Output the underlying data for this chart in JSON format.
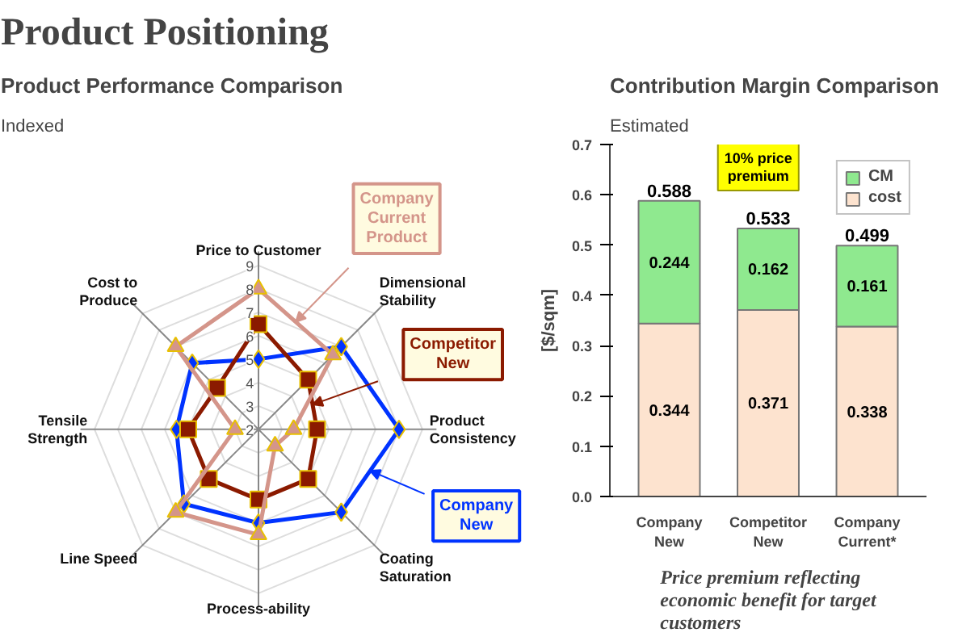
{
  "chart_data": [
    {
      "type": "radar",
      "title": "Product Performance Comparison",
      "subtitle": "Indexed",
      "annotations": [
        "Product Positioning"
      ],
      "categories": [
        "Price to Customer",
        "Dimensional Stability",
        "Product Consistency",
        "Coating Saturation",
        "Process-ability",
        "Line Speed",
        "Tensile Strength",
        "Cost to Produce"
      ],
      "ylim": [
        2,
        9
      ],
      "yticks": [
        2,
        3,
        4,
        5,
        6,
        7,
        8,
        9
      ],
      "grid": true,
      "legend": false,
      "series": [
        {
          "name": "Company New",
          "color": "#0033ff",
          "marker": "diamond",
          "values": [
            5,
            7,
            8,
            7,
            6,
            6.5,
            5.5,
            6
          ]
        },
        {
          "name": "Competitor New",
          "color": "#8b1a00",
          "marker": "square",
          "values": [
            6.5,
            5,
            4.5,
            5,
            5,
            5,
            5,
            4.5
          ]
        },
        {
          "name": "Company Current Product",
          "color": "#d4958a",
          "marker": "triangle",
          "values": [
            8,
            6.5,
            3.5,
            3,
            6.5,
            7,
            3,
            7
          ]
        }
      ]
    },
    {
      "type": "bar",
      "title": "Contribution Margin Comparison",
      "subtitle": "Estimated",
      "ylabel": "[$/sqm]",
      "stacked": true,
      "data_labels": true,
      "legend": "top right",
      "grid": false,
      "annotations": [
        "10% price premium",
        "Price premium reflecting economic benefit for target customers"
      ],
      "categories": [
        "Company New",
        "Competitor New",
        "Company Current*"
      ],
      "ylim": [
        0,
        0.7
      ],
      "yticks": [
        {
          "value": 0,
          "label": "0.0"
        },
        {
          "value": 0.1,
          "label": "0.1"
        },
        {
          "value": 0.2,
          "label": "0.2"
        },
        {
          "value": 0.3,
          "label": "0.3"
        },
        {
          "value": 0.4,
          "label": "0.4"
        },
        {
          "value": 0.5,
          "label": "0.5"
        },
        {
          "value": 0.6,
          "label": "0.6"
        },
        {
          "value": 0.7,
          "label": "0.7"
        }
      ],
      "totals": [
        "0.588",
        "0.533",
        "0.499"
      ],
      "series": [
        {
          "name": "cost",
          "color": "#fde3cf",
          "values": [
            0.344,
            0.371,
            0.338
          ]
        },
        {
          "name": "CM",
          "color": "#8fe98f",
          "values": [
            0.244,
            0.162,
            0.161
          ]
        }
      ]
    }
  ]
}
